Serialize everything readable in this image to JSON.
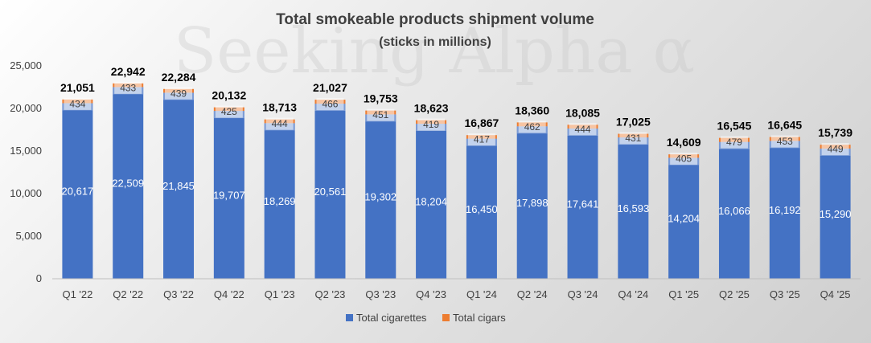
{
  "chart_data": {
    "type": "bar",
    "stacked": true,
    "title": "Total smokeable products shipment volume",
    "subtitle": "(sticks in millions)",
    "categories": [
      "Q1 '22",
      "Q2 '22",
      "Q3 '22",
      "Q4 '22",
      "Q1 '23",
      "Q2 '23",
      "Q3 '23",
      "Q4 '23",
      "Q1 '24",
      "Q2 '24",
      "Q3 '24",
      "Q4 '24",
      "Q1 '25",
      "Q2 '25",
      "Q3 '25",
      "Q4 '25"
    ],
    "series": [
      {
        "name": "Total cigarettes",
        "color": "#4472c4",
        "values": [
          20617,
          22509,
          21845,
          19707,
          18269,
          20561,
          19302,
          18204,
          16450,
          17898,
          17641,
          16593,
          14204,
          16066,
          16192,
          15290
        ]
      },
      {
        "name": "Total cigars",
        "color": "#ed7d31",
        "values": [
          434,
          433,
          439,
          425,
          444,
          466,
          451,
          419,
          417,
          462,
          444,
          431,
          405,
          479,
          453,
          449
        ]
      }
    ],
    "totals": [
      21051,
      22942,
      22284,
      20132,
      18713,
      21027,
      19753,
      18623,
      16867,
      18360,
      18085,
      17025,
      14609,
      16545,
      16645,
      15739
    ],
    "ylim": [
      0,
      25000
    ],
    "yticks": [
      0,
      5000,
      10000,
      15000,
      20000,
      25000
    ],
    "ytick_labels": [
      "0",
      "5,000",
      "10,000",
      "15,000",
      "20,000",
      "25,000"
    ],
    "xlabel": "",
    "ylabel": "",
    "grid": false,
    "legend_position": "bottom"
  },
  "watermark": "Seeking Alpha α"
}
